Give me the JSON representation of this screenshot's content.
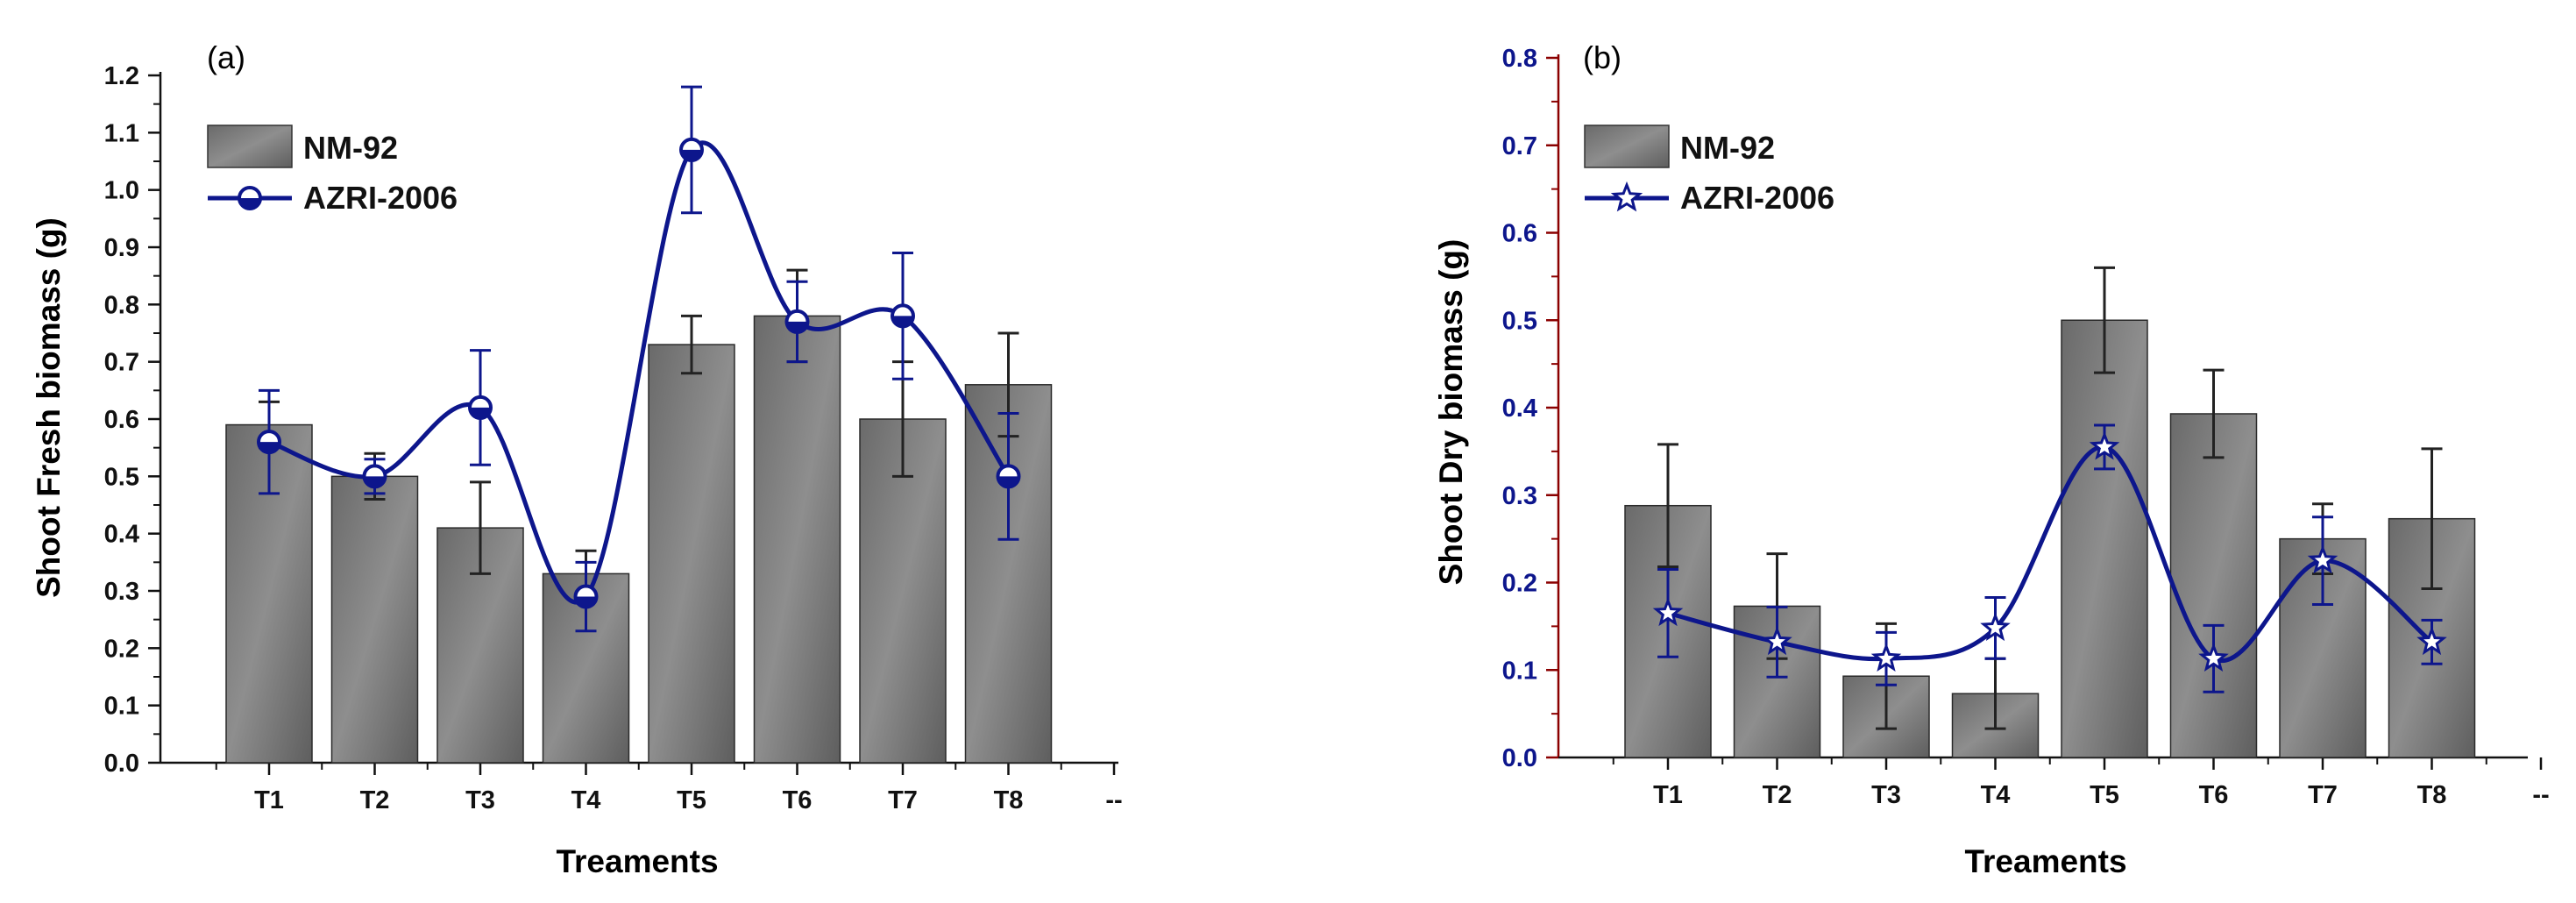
{
  "chart_data": [
    {
      "panel_label": "(a)",
      "type": "bar",
      "categories": [
        "T1",
        "T2",
        "T3",
        "T4",
        "T5",
        "T6",
        "T7",
        "T8"
      ],
      "extra_tick": "--",
      "xlabel": "Treaments",
      "ylabel": "Shoot Fresh biomass (g)",
      "ylim": [
        0.0,
        1.2
      ],
      "ytick_step": 0.1,
      "ytick_labels": [
        "0.0",
        "0.1",
        "0.2",
        "0.3",
        "0.4",
        "0.5",
        "0.6",
        "0.7",
        "0.8",
        "0.9",
        "1.0",
        "1.1",
        "1.2"
      ],
      "y_axis_color": "#111111",
      "y_tick_label_color": "#111111",
      "series": [
        {
          "name": "NM-92",
          "kind": "bar",
          "values": [
            0.59,
            0.5,
            0.41,
            0.33,
            0.73,
            0.78,
            0.6,
            0.66
          ],
          "errors": [
            0.04,
            0.04,
            0.08,
            0.04,
            0.05,
            0.08,
            0.1,
            0.09
          ],
          "color": "#7d7d7d"
        },
        {
          "name": "AZRI-2006",
          "kind": "line",
          "marker": "circle",
          "values": [
            0.56,
            0.5,
            0.62,
            0.29,
            1.07,
            0.77,
            0.78,
            0.5
          ],
          "errors": [
            0.09,
            0.03,
            0.1,
            0.06,
            0.11,
            0.07,
            0.11,
            0.11
          ],
          "color": "#0d168c"
        }
      ]
    },
    {
      "panel_label": "(b)",
      "type": "bar",
      "categories": [
        "T1",
        "T2",
        "T3",
        "T4",
        "T5",
        "T6",
        "T7",
        "T8"
      ],
      "extra_tick": "--",
      "xlabel": "Treaments",
      "ylabel": "Shoot Dry biomass (g)",
      "ylim": [
        0.0,
        0.8
      ],
      "ytick_step": 0.1,
      "ytick_labels": [
        "0.0",
        "0.1",
        "0.2",
        "0.3",
        "0.4",
        "0.5",
        "0.6",
        "0.7",
        "0.8"
      ],
      "y_axis_color": "#8b0000",
      "y_tick_label_color": "#0d168c",
      "series": [
        {
          "name": "NM-92",
          "kind": "bar",
          "values": [
            0.288,
            0.173,
            0.093,
            0.073,
            0.5,
            0.393,
            0.25,
            0.273
          ],
          "errors": [
            0.07,
            0.06,
            0.06,
            0.04,
            0.06,
            0.05,
            0.04,
            0.08
          ],
          "color": "#7d7d7d"
        },
        {
          "name": "AZRI-2006",
          "kind": "line",
          "marker": "star",
          "values": [
            0.165,
            0.132,
            0.113,
            0.148,
            0.355,
            0.113,
            0.225,
            0.132
          ],
          "errors": [
            0.05,
            0.04,
            0.03,
            0.035,
            0.025,
            0.038,
            0.05,
            0.025
          ],
          "color": "#0d168c"
        }
      ]
    }
  ]
}
